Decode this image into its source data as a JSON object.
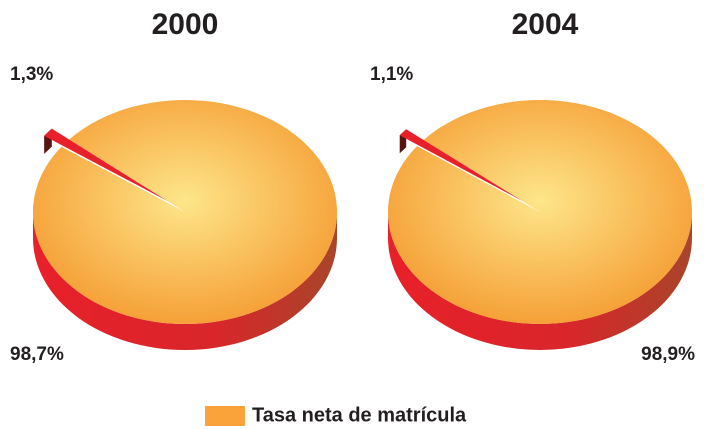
{
  "chart_data": [
    {
      "type": "pie",
      "title": "2000",
      "values": [
        98.7,
        1.3
      ],
      "value_labels": [
        "98,7%",
        "1,3%"
      ],
      "colors": [
        "#f9a33a",
        "#e8202a"
      ]
    },
    {
      "type": "pie",
      "title": "2004",
      "values": [
        98.9,
        1.1
      ],
      "value_labels": [
        "98,9%",
        "1,1%"
      ],
      "colors": [
        "#f9a33a",
        "#e8202a"
      ]
    }
  ],
  "legend": {
    "label": "Tasa neta de matrícula"
  }
}
